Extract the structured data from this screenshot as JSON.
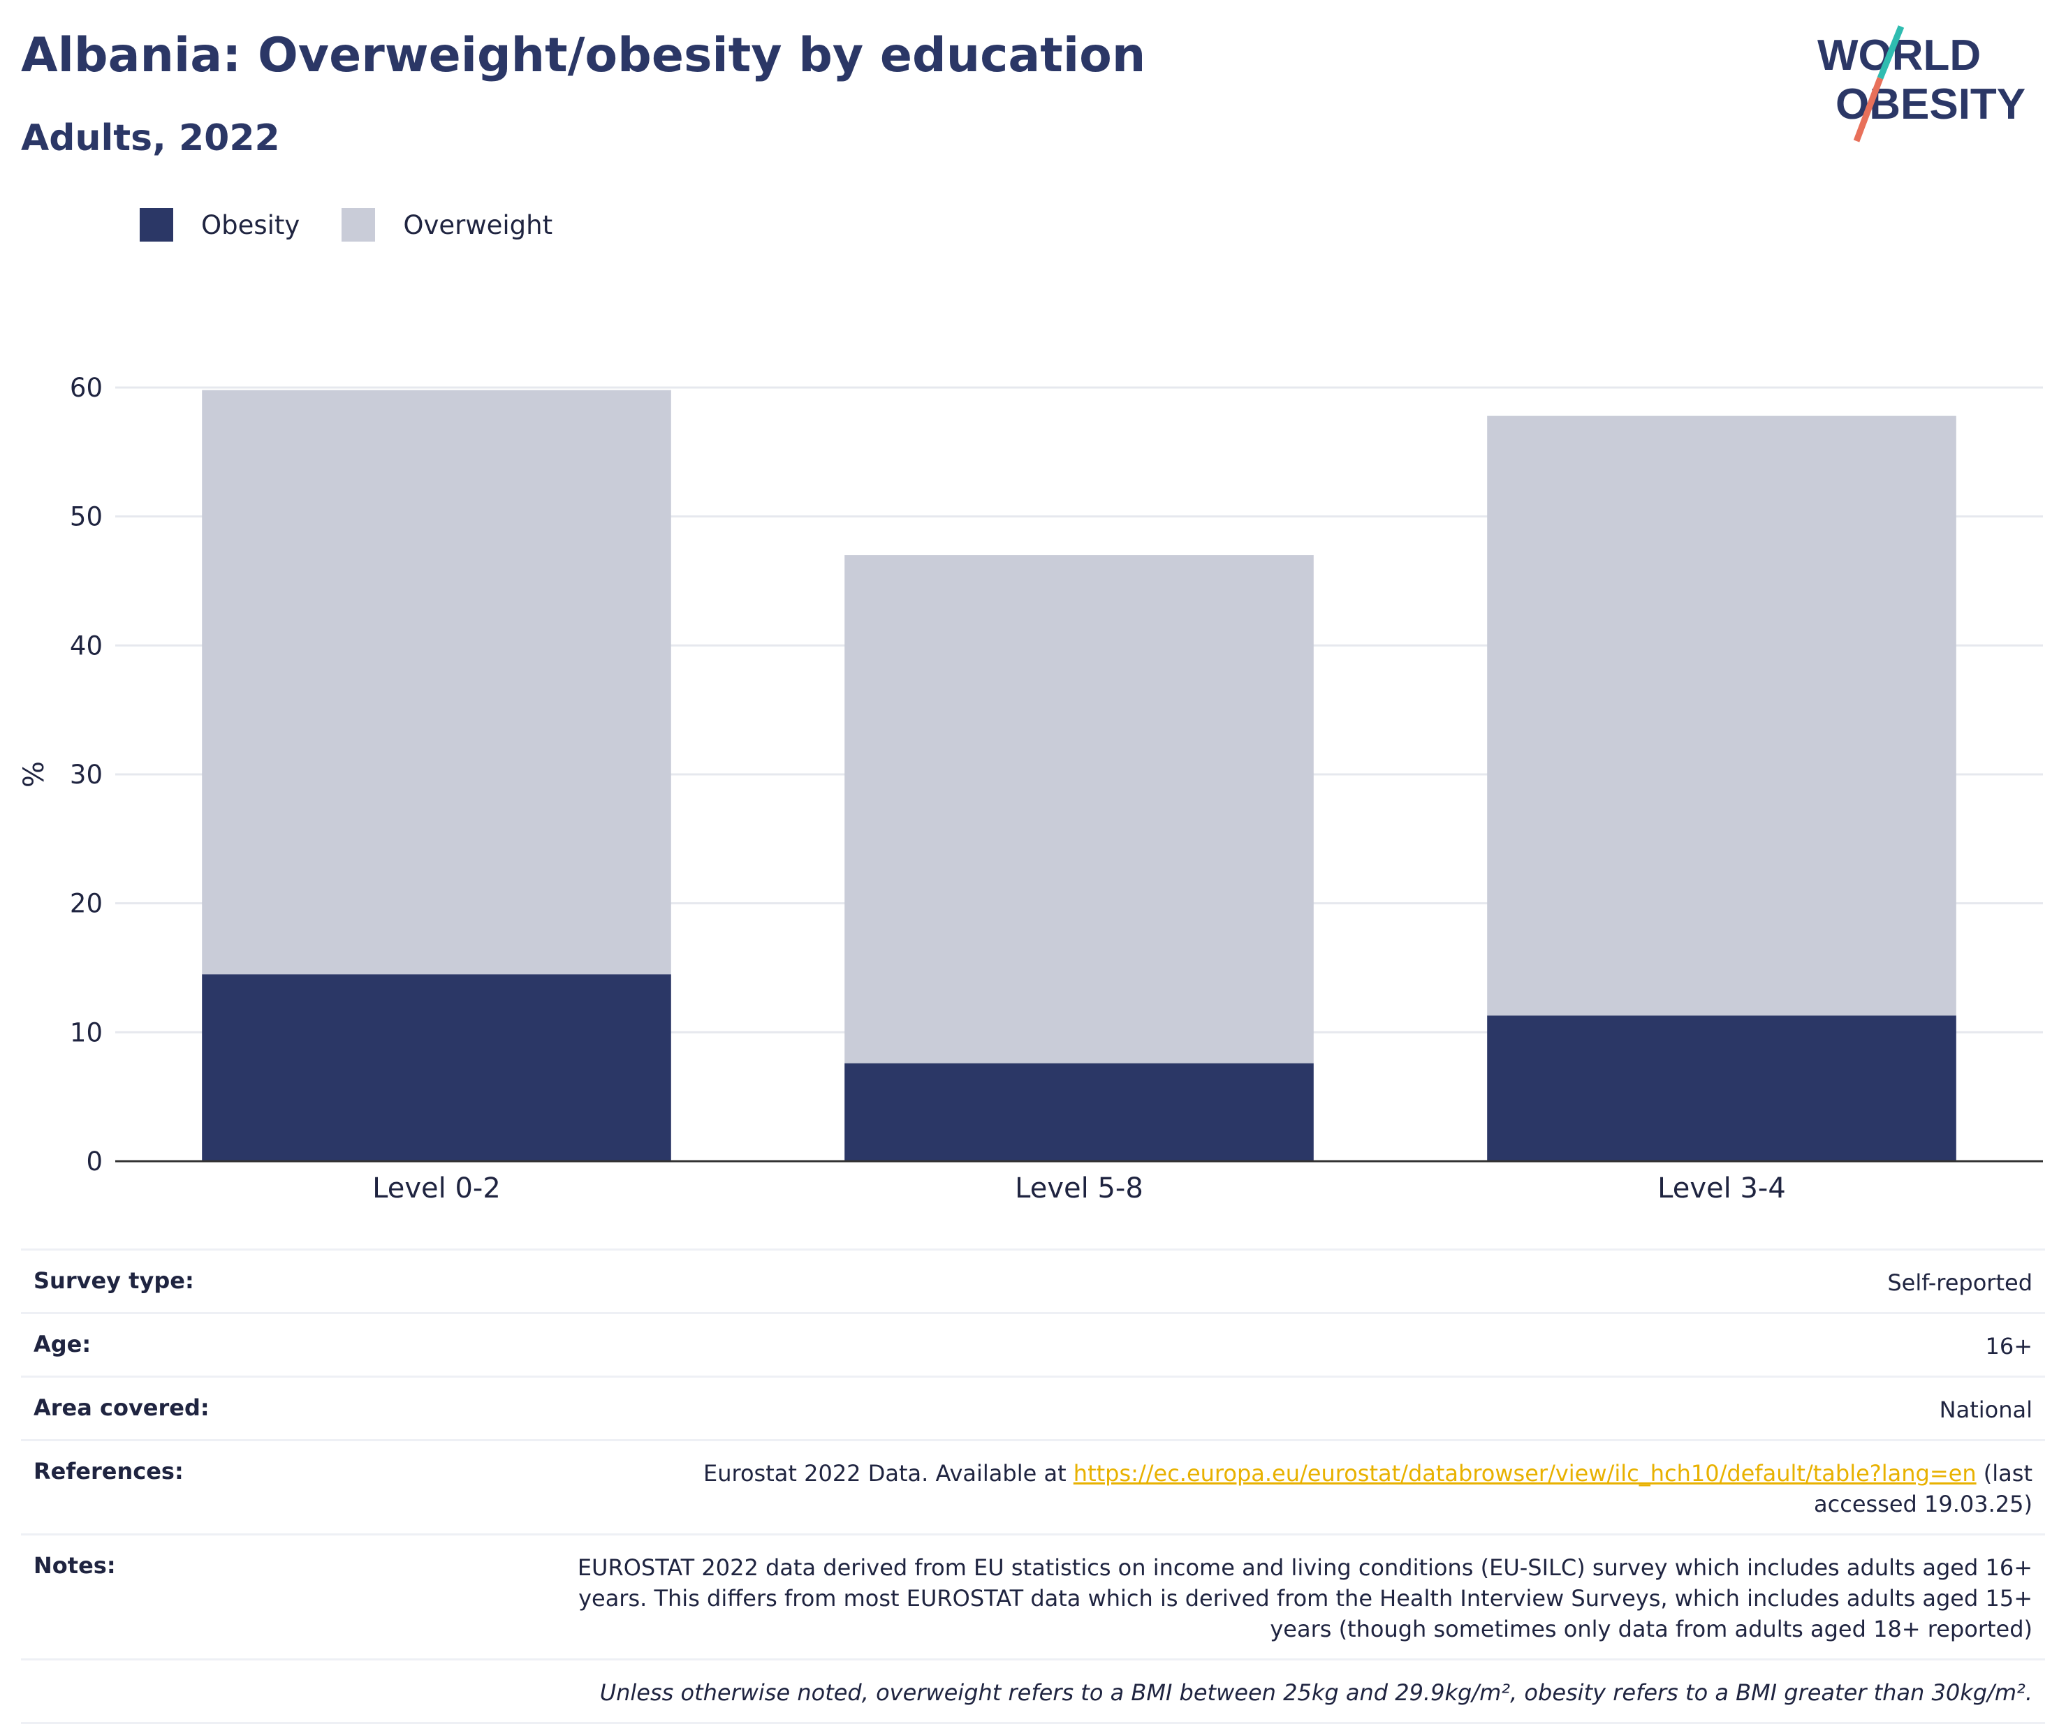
{
  "header": {
    "title": "Albania: Overweight/obesity by education",
    "subtitle": "Adults, 2022",
    "logo": {
      "line1": "WORLD",
      "line2": "OBESITY",
      "slash_color_top": "#2fbcb0",
      "slash_color_bottom": "#e8705a"
    }
  },
  "colors": {
    "obesity": "#2b3766",
    "overweight": "#c9ccd8",
    "grid": "#e6e8ee",
    "axis": "#333333"
  },
  "chart_data": {
    "type": "bar",
    "stacked": true,
    "categories": [
      "Level 0-2",
      "Level 5-8",
      "Level 3-4"
    ],
    "series": [
      {
        "name": "Obesity",
        "values": [
          14.5,
          7.6,
          11.3
        ]
      },
      {
        "name": "Overweight",
        "values": [
          45.3,
          39.4,
          46.5
        ]
      }
    ],
    "ylabel": "%",
    "ylim": [
      0,
      60
    ],
    "yticks": [
      0,
      10,
      20,
      30,
      40,
      50,
      60
    ],
    "grid": true,
    "legend": "top-left"
  },
  "info": {
    "survey_type_label": "Survey type:",
    "survey_type": "Self-reported",
    "age_label": "Age:",
    "age": "16+",
    "area_label": "Area covered:",
    "area": "National",
    "references_label": "References:",
    "references_pre": "Eurostat 2022 Data. Available at ",
    "references_link": "https://ec.europa.eu/eurostat/databrowser/view/ilc_hch10/default/table?lang=en",
    "references_post": " (last accessed 19.03.25)",
    "notes_label": "Notes:",
    "notes": "EUROSTAT 2022 data derived from EU statistics on income and living conditions (EU-SILC) survey which includes adults aged 16+ years. This differs from most EUROSTAT data which is derived from the Health Interview Surveys, which includes adults aged 15+ years (though sometimes only data from adults aged 18+ reported)",
    "footnote": "Unless otherwise noted, overweight refers to a BMI between 25kg and 29.9kg/m², obesity refers to a BMI greater than 30kg/m²."
  }
}
